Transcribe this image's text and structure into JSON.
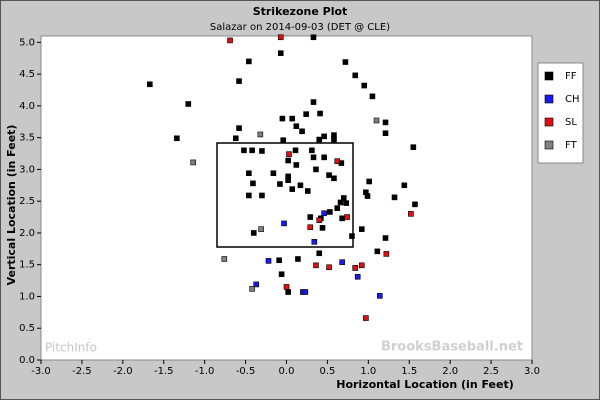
{
  "chart_data": {
    "type": "scatter",
    "title": "Strikezone Plot",
    "subtitle": "Salazar on 2014-09-03 (DET @ CLE)",
    "x_label": "Horizontal Location (in Feet)",
    "y_label": "Vertical Location (in Feet)",
    "watermarks": [
      "PitchInfo",
      "BrooksBaseball.net"
    ],
    "xlim": [
      -3,
      3
    ],
    "ylim": [
      0,
      5.1
    ],
    "xticks": [
      {
        "value": -3,
        "label": "-3.0"
      },
      -2.5,
      {
        "value": -2,
        "label": "-2.0"
      },
      -1.5,
      {
        "value": -1,
        "label": "-1.0"
      },
      -0.5,
      {
        "value": 0,
        "label": "0.0"
      },
      0.5,
      {
        "value": 1,
        "label": "1.0"
      },
      1.5,
      {
        "value": 2,
        "label": "2.0"
      },
      2.5,
      {
        "value": 3,
        "label": "3.0"
      }
    ],
    "yticks": [
      {
        "value": 0,
        "label": "0.0"
      },
      0.5,
      {
        "value": 1,
        "label": "1.0"
      },
      1.5,
      {
        "value": 2,
        "label": "2.0"
      },
      2.5,
      {
        "value": 3,
        "label": "3.0"
      },
      3.5,
      {
        "value": 4,
        "label": "4.0"
      },
      4.5,
      {
        "value": 5,
        "label": "5.0"
      }
    ],
    "grid": false,
    "legend": "right",
    "series": [
      {
        "name": "FF",
        "color": "#000000",
        "x": [
          -1.67,
          -1.2,
          -1.34,
          -0.46,
          -0.58,
          0.33,
          -0.07,
          0.72,
          0.84,
          0.95,
          1.05,
          0.33,
          0.41,
          0.24,
          -0.05,
          0.07,
          0.12,
          0.19,
          -0.58,
          -0.62,
          0.46,
          0.58,
          1.21,
          1.21,
          -0.04,
          0.31,
          0.58,
          0.4,
          1.55,
          -0.52,
          -0.42,
          -0.3,
          0.11,
          0.02,
          0.12,
          0.33,
          0.46,
          0.67,
          -0.46,
          -0.16,
          0.02,
          0.36,
          0.52,
          0.58,
          -0.41,
          -0.08,
          0.02,
          0.17,
          0.07,
          1.01,
          1.44,
          0.97,
          -0.46,
          -0.3,
          0.26,
          0.7,
          0.66,
          0.73,
          1.32,
          0.99,
          1.57,
          0.62,
          0.53,
          0.29,
          0.42,
          0.68,
          0.8,
          0.92,
          1.21,
          1.11,
          0.14,
          -0.09,
          0.4,
          -0.06,
          0.02,
          0.84,
          -0.4,
          0.44
        ],
        "values": [
          4.34,
          4.03,
          3.49,
          4.7,
          4.39,
          5.08,
          4.83,
          4.69,
          4.48,
          4.32,
          4.15,
          4.06,
          3.88,
          3.87,
          3.8,
          3.8,
          3.68,
          3.6,
          3.65,
          3.49,
          3.52,
          3.54,
          3.74,
          3.57,
          3.46,
          3.3,
          3.47,
          3.47,
          3.35,
          3.3,
          3.3,
          3.29,
          3.3,
          3.14,
          3.07,
          3.19,
          3.19,
          3.1,
          2.94,
          2.94,
          2.89,
          3.0,
          2.91,
          2.86,
          2.78,
          2.77,
          2.83,
          2.75,
          2.69,
          2.81,
          2.75,
          2.64,
          2.59,
          2.59,
          2.66,
          2.55,
          2.48,
          2.47,
          2.56,
          2.58,
          2.45,
          2.39,
          2.33,
          2.25,
          2.23,
          2.23,
          1.95,
          2.06,
          1.92,
          1.71,
          1.59,
          1.57,
          1.68,
          1.35,
          1.07,
          1.45,
          2.0,
          2.08
        ]
      },
      {
        "name": "CH",
        "color": "#1a1aee",
        "x": [
          -0.03,
          0.46,
          0.34,
          -0.22,
          -0.37,
          0.2,
          0.23,
          1.14,
          0.87,
          0.68
        ],
        "values": [
          2.15,
          2.31,
          1.86,
          1.56,
          1.19,
          1.07,
          1.07,
          1.01,
          1.31,
          1.54
        ]
      },
      {
        "name": "SL",
        "color": "#dd1111",
        "x": [
          -0.69,
          -0.07,
          0.03,
          0.62,
          0.4,
          0.29,
          0.74,
          1.52,
          1.22,
          0.36,
          0.52,
          0.92,
          0.0,
          0.97,
          0.84
        ],
        "values": [
          5.03,
          5.08,
          3.24,
          3.13,
          2.2,
          2.09,
          2.25,
          2.3,
          1.67,
          1.49,
          1.46,
          1.49,
          1.15,
          0.66,
          1.45
        ]
      },
      {
        "name": "FT",
        "color": "#808080",
        "x": [
          -1.14,
          -0.32,
          1.1,
          -0.31,
          -0.76,
          -0.42
        ],
        "values": [
          3.11,
          3.55,
          3.77,
          2.06,
          1.59,
          1.12
        ]
      }
    ]
  }
}
